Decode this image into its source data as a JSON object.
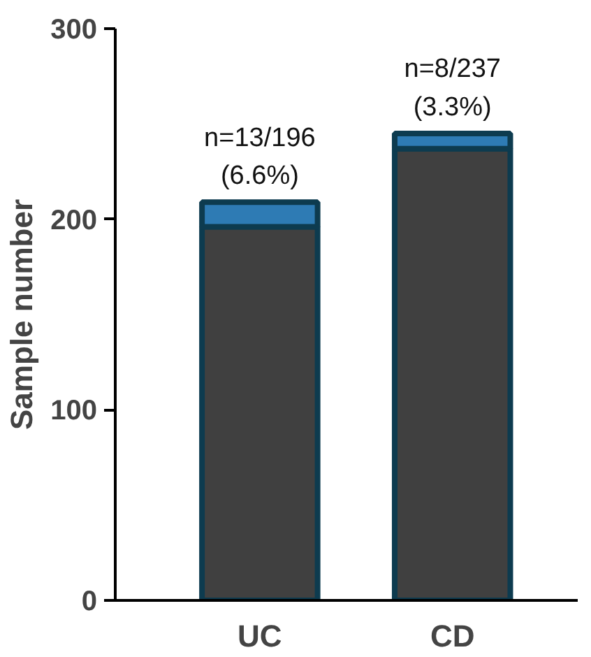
{
  "chart_data": {
    "type": "bar",
    "ylabel": "Sample number",
    "categories": [
      "UC",
      "CD"
    ],
    "stacked": true,
    "series": [
      {
        "color": "#404040",
        "values": [
          196,
          237
        ]
      },
      {
        "color": "#2e7bb4",
        "values": [
          13,
          8
        ]
      }
    ],
    "ylim": [
      0,
      300
    ],
    "yticks": [
      0,
      100,
      200,
      300
    ],
    "grid": false,
    "annotations": [
      {
        "text": "n=13/196\n(6.6%)",
        "x": "UC",
        "y": 209
      },
      {
        "text": "n=8/237\n(3.3%)",
        "x": "CD",
        "y": 245
      }
    ]
  }
}
